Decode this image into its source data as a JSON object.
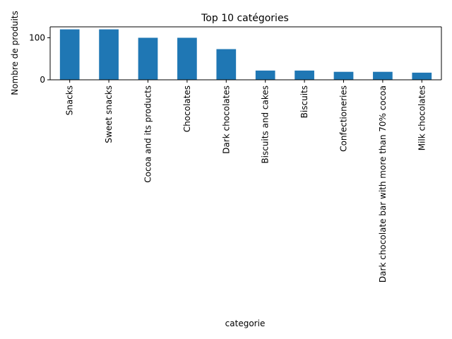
{
  "chart_data": {
    "type": "bar",
    "title": "Top 10 catégories",
    "xlabel": "categorie",
    "ylabel": "Nombre de produits",
    "categories": [
      "Snacks",
      "Sweet snacks",
      "Cocoa and its products",
      "Chocolates",
      "Dark chocolates",
      "Biscuits and cakes",
      "Biscuits",
      "Confectioneries",
      "Dark chocolate bar with more than 70% cocoa",
      "Milk chocolates"
    ],
    "values": [
      120,
      120,
      100,
      100,
      73,
      22,
      22,
      19,
      19,
      17
    ],
    "yticks": [
      0,
      100
    ],
    "ylim": [
      0,
      126
    ],
    "grid": false,
    "legend": "none",
    "colors": {
      "bar": "#1f77b4",
      "axis": "#000000",
      "background": "#ffffff"
    }
  }
}
